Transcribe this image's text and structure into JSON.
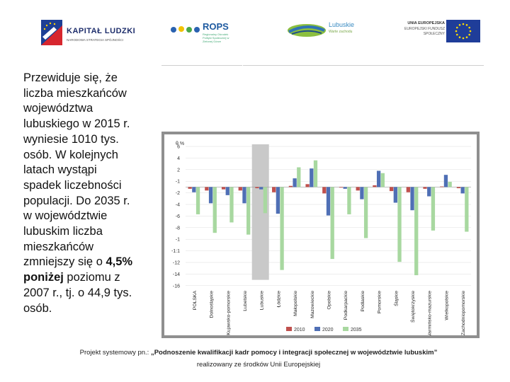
{
  "logos": {
    "kapital_ludzki": {
      "title": "KAPITAŁ LUDZKI",
      "subtitle": "NARODOWA STRATEGIA SPÓJNOŚCI"
    },
    "rops": {
      "title": "ROPS",
      "subtitle": "Regionalny Ośrodek Polityki Społecznej w Zielonej Górze"
    },
    "lubuskie": {
      "title": "Lubuskie",
      "subtitle": "Warte zachodu"
    },
    "ue": {
      "title": "UNIA EUROPEJSKA",
      "subtitle": "EUROPEJSKI FUNDUSZ SPOŁECZNY"
    }
  },
  "main": {
    "text": "Przewiduje się, że liczba mieszkańców województwa lubuskiego w 2015 r. wyniesie 1010 tys. osób. W kolejnych latach wystąpi spadek liczebności populacji. Do 2035 r. w województwie lubuskim liczba mieszkańców zmniejszy się o ",
    "bold_text": "4,5% poniżej",
    "text_end": " poziomu z 2007 r., tj. o 44,9 tys. osób."
  },
  "footer": {
    "line1_start": "Projekt systemowy pn.: ",
    "line1_bold": "„Podnoszenie kwalifikacji kadr pomocy i integracji społecznej w województwie lubuskim”",
    "line2": "realizowany ze środków Unii Europejskiej"
  },
  "chart_data": {
    "type": "bar",
    "ylabel": "%",
    "y_ticks": [
      "6",
      "4",
      "2",
      "-1",
      "-2",
      "-4",
      "-6",
      "-8",
      "-1",
      "-1:1",
      "-12",
      "-14",
      "-16"
    ],
    "ylim": [
      -16,
      6
    ],
    "categories": [
      "POLSKA",
      "Dolnośląskie",
      "Kujawsko-pomorskie",
      "Lubelskie",
      "Lubuskie",
      "Łódzkie",
      "Małopolskie",
      "Mazowieckie",
      "Opolskie",
      "Podkarpackie",
      "Podlaskie",
      "Pomorskie",
      "Śląskie",
      "Świętokrzyskie",
      "Warmińsko-mazurskie",
      "Wielkopolskie",
      "Zachodniopomorskie"
    ],
    "series": [
      {
        "name": "2010",
        "color": "#c0504d",
        "values": [
          -0.3,
          -0.6,
          -0.4,
          -0.6,
          -0.2,
          -0.9,
          0.2,
          0.5,
          -1.1,
          -0.1,
          -0.6,
          0.3,
          -0.7,
          -0.9,
          -0.3,
          0.1,
          -0.2
        ]
      },
      {
        "name": "2020",
        "color": "#4f6fb5",
        "values": [
          -0.9,
          -2.8,
          -1.4,
          -2.8,
          -0.4,
          -4.6,
          1.5,
          3.2,
          -4.9,
          -0.3,
          -2.1,
          2.8,
          -2.7,
          -4.0,
          -1.6,
          2.1,
          -1.1
        ]
      },
      {
        "name": "2035",
        "color": "#a8d8a0",
        "values": [
          -4.7,
          -7.9,
          -6.1,
          -8.2,
          -4.5,
          -14.3,
          3.4,
          4.6,
          -12.4,
          -4.7,
          -8.8,
          2.4,
          -12.9,
          -15.2,
          -7.5,
          0.9,
          -7.7
        ]
      }
    ],
    "highlight_category": "Lubuskie",
    "legend": [
      "2010",
      "2020",
      "2035"
    ]
  }
}
